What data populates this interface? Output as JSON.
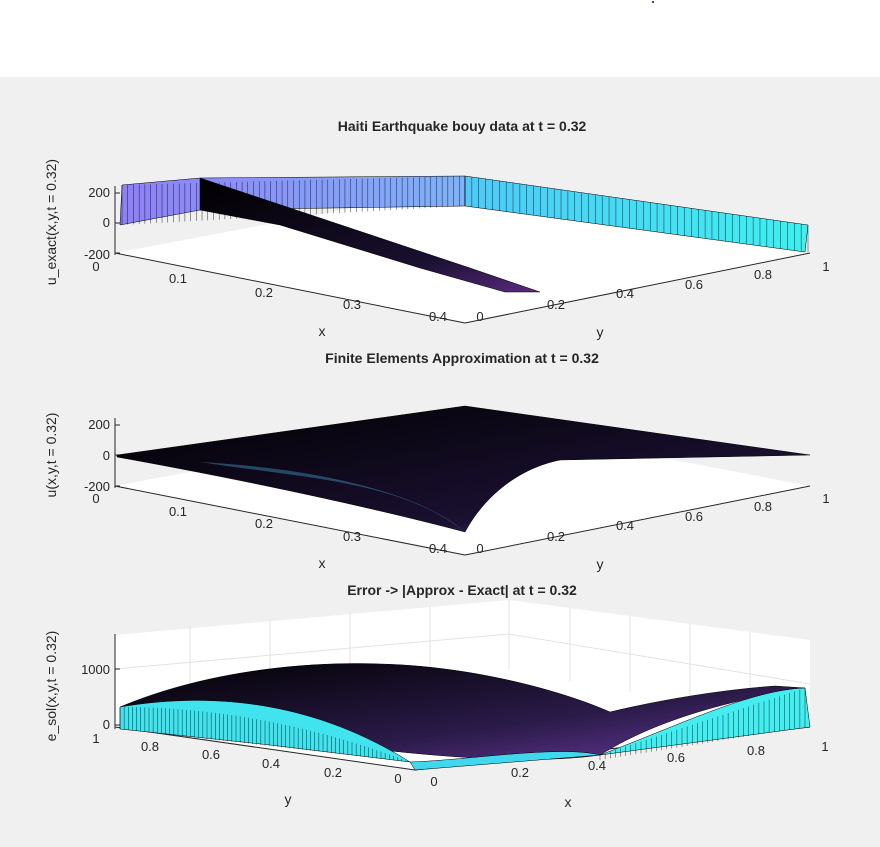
{
  "chart_data": [
    {
      "type": "surface",
      "title": "Haiti Earthquake bouy data at t = 0.32",
      "xlabel": "x",
      "ylabel": "y",
      "zlabel": "u_exact(x,y,t = 0.32)",
      "xticks": [
        "0.1",
        "0.2",
        "0.3",
        "0.4"
      ],
      "yticks": [
        "0",
        "0.2",
        "0.4",
        "0.6",
        "0.8",
        "1"
      ],
      "zticks": [
        "-200",
        "0",
        "200"
      ],
      "xlim": [
        0,
        0.45
      ],
      "ylim": [
        0,
        1
      ],
      "zlim": [
        -200,
        250
      ],
      "colormap": "cool",
      "grid": false
    },
    {
      "type": "surface",
      "title": "Finite Elements Approximation at t = 0.32",
      "xlabel": "x",
      "ylabel": "y",
      "zlabel": "u(x,y,t = 0.32)",
      "xticks": [
        "0",
        "0.1",
        "0.2",
        "0.3",
        "0.4"
      ],
      "yticks": [
        "0",
        "0.2",
        "0.4",
        "0.6",
        "0.8",
        "1"
      ],
      "zticks": [
        "-200",
        "0",
        "200"
      ],
      "xlim": [
        0,
        0.45
      ],
      "ylim": [
        0,
        1
      ],
      "zlim": [
        -200,
        250
      ],
      "colormap": "cool",
      "grid": false
    },
    {
      "type": "surface",
      "title": "Error -> |Approx - Exact| at t = 0.32",
      "xlabel": "x",
      "ylabel": "y",
      "zlabel": "e_sol(x,y,t = 0.32)",
      "xticks": [
        "0",
        "0.2",
        "0.4",
        "0.6",
        "0.8",
        "1"
      ],
      "yticks": [
        "0",
        "0.2",
        "0.4",
        "0.6",
        "0.8",
        "1"
      ],
      "zticks": [
        "0",
        "1000"
      ],
      "xlim": [
        0,
        1
      ],
      "ylim": [
        0,
        1
      ],
      "zlim": [
        0,
        1600
      ],
      "colormap": "cool",
      "grid": true
    }
  ],
  "colors": {
    "figure_background": "#f0f0f0",
    "axes_background": "#ffffff",
    "mesh_edge": "#000000",
    "wall_purple": "#8b7df5",
    "wall_cyan": "#3de6f0",
    "text": "#262626"
  }
}
